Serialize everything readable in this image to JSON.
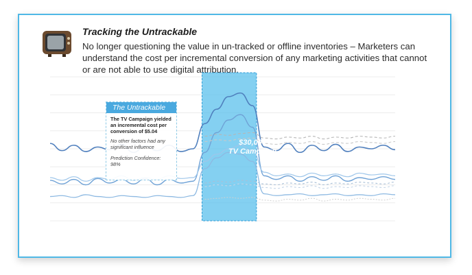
{
  "header": {
    "title": "Tracking the Untrackable",
    "description": "No longer questioning the value in un-tracked or offline inventories – Marketers can understand the cost per incremental conversion of any marketing activities that cannot or are not able to use digital attribution.",
    "icon": "tv-icon"
  },
  "callout": {
    "title": "The Untrackable",
    "main": "The TV Campaign yielded an incremental cost per conversion of $5.04",
    "sub": "No other factors had any significant influence",
    "confidence": "Prediction Confidence: 98%"
  },
  "campaign": {
    "line1": "$30,000",
    "line2": "TV Campaign"
  },
  "colors": {
    "accent": "#4fb8e6",
    "highlight": "#5bc0ec",
    "series_dark": "#4f7fbd",
    "series_light": "#8db9e2",
    "series_grey": "#b6b6b6"
  },
  "chart_data": {
    "type": "line",
    "x": [
      1,
      2,
      3,
      4,
      5,
      6,
      7,
      8,
      9,
      10,
      11,
      12,
      13,
      14,
      15,
      16,
      17,
      18,
      19,
      20,
      21,
      22,
      23,
      24,
      25,
      26,
      27,
      28,
      29,
      30
    ],
    "highlight_range": [
      14,
      18
    ],
    "grid": true,
    "series": [
      {
        "values": [
          5300,
          4900,
          5200,
          4850,
          5100,
          4950,
          5250,
          4800,
          5150,
          4900,
          5200,
          4850,
          5000,
          6400,
          7200,
          7900,
          8100,
          7400,
          5100,
          4900,
          5300,
          4800,
          5200,
          4900,
          5250,
          4850,
          5100,
          5000,
          5200,
          4950
        ]
      },
      {
        "values": [
          3250,
          3050,
          3300,
          3000,
          3350,
          3100,
          3300,
          3050,
          3350,
          3000,
          3300,
          3100,
          3200,
          4800,
          5900,
          6600,
          6900,
          6200,
          3500,
          3300,
          3500,
          3200,
          3450,
          3250,
          3500,
          3200,
          3400,
          3300,
          3450,
          3300
        ]
      },
      {
        "values": [
          2350,
          2400,
          2300,
          2450,
          2350,
          2300,
          2400,
          2350,
          2300,
          2400,
          2350,
          2300,
          2400,
          3900,
          4500,
          4800,
          4700,
          4300,
          2500,
          2400,
          2450,
          2500,
          2400,
          2450,
          2500,
          2400,
          2450,
          2400,
          2500,
          2450
        ]
      },
      {
        "values": [
          3400,
          3250,
          3450,
          3200,
          3400,
          3300,
          3500,
          3250,
          3400,
          3300,
          3500,
          3350,
          3400,
          4300,
          4700,
          5000,
          5200,
          4900,
          3700,
          3500,
          3600,
          3450,
          3650,
          3500,
          3600,
          3450,
          3650,
          3550,
          3600,
          3500
        ]
      },
      {
        "values": [
          null,
          null,
          null,
          null,
          null,
          null,
          null,
          null,
          null,
          null,
          null,
          null,
          null,
          5700,
          5800,
          5750,
          5850,
          5900,
          5600,
          5550,
          5650,
          5600,
          5700,
          5550,
          5650,
          5600,
          5700,
          5650,
          5600,
          5700
        ]
      },
      {
        "values": [
          null,
          null,
          null,
          null,
          null,
          null,
          null,
          null,
          null,
          null,
          null,
          null,
          null,
          5400,
          5500,
          5450,
          5550,
          5600,
          5300,
          5250,
          5350,
          5300,
          5400,
          5250,
          5350,
          5300,
          5400,
          5350,
          5300,
          5400
        ]
      },
      {
        "values": [
          null,
          null,
          null,
          null,
          null,
          null,
          null,
          null,
          null,
          null,
          null,
          null,
          null,
          3100,
          3200,
          3150,
          3250,
          3200,
          3050,
          3000,
          3100,
          3050,
          3150,
          3000,
          3100,
          3050,
          3150,
          3100,
          3050,
          3150
        ]
      },
      {
        "values": [
          null,
          null,
          null,
          null,
          null,
          null,
          null,
          null,
          null,
          null,
          null,
          null,
          null,
          2900,
          3000,
          2950,
          3050,
          3000,
          2850,
          2800,
          2900,
          2850,
          2950,
          2800,
          2900,
          2850,
          2950,
          2900,
          2850,
          2950
        ]
      },
      {
        "values": [
          null,
          null,
          null,
          null,
          null,
          null,
          null,
          null,
          null,
          null,
          null,
          null,
          null,
          2200,
          2250,
          2300,
          2250,
          2300,
          2150,
          2100,
          2200,
          2150,
          2250,
          2100,
          2200,
          2150,
          2250,
          2200,
          2150,
          2250
        ]
      }
    ],
    "ylim": [
      1000,
      9000
    ]
  }
}
